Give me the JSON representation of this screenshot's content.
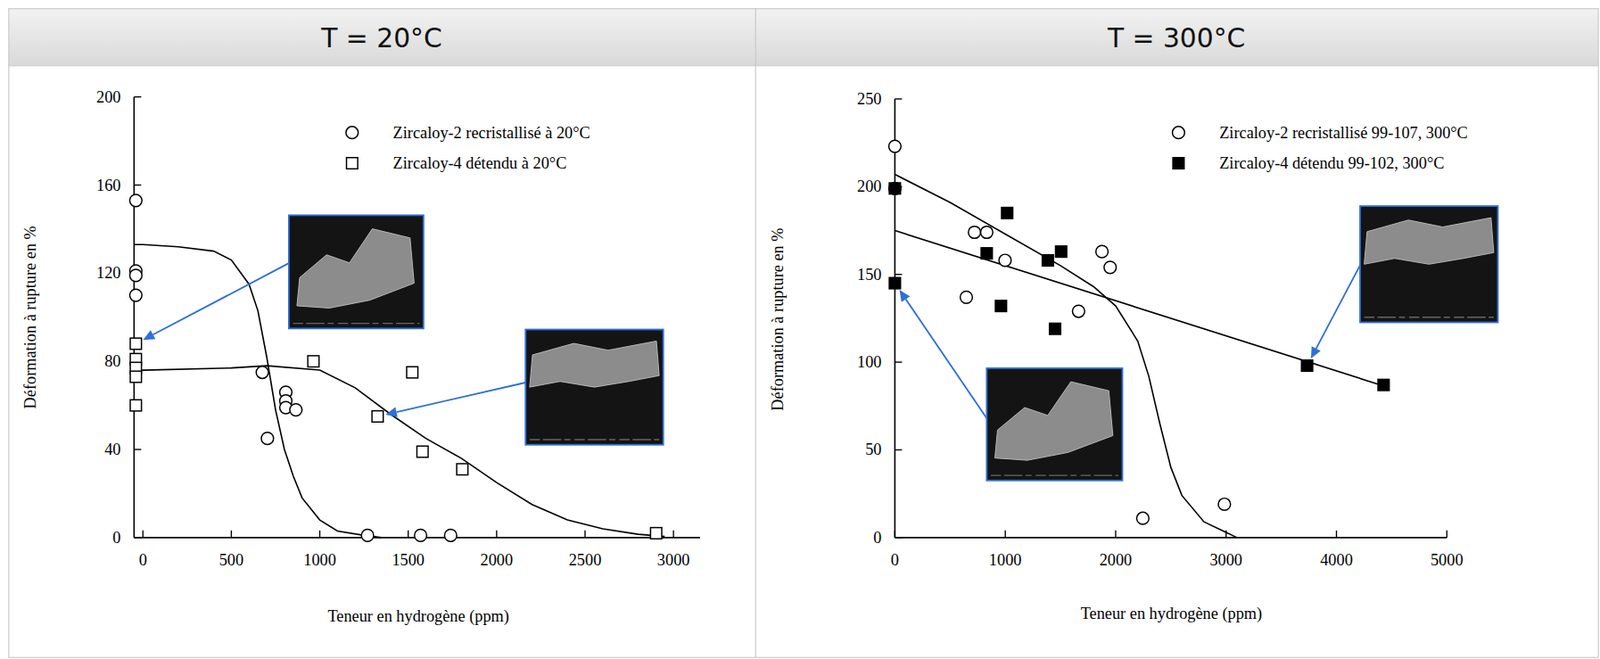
{
  "chart_data": [
    {
      "type": "scatter",
      "title": "T = 20°C",
      "x_label": "Teneur en hydrogène (ppm)",
      "y_label": "Déformation à rupture en %",
      "xlim": [
        -50,
        3150
      ],
      "ylim": [
        0,
        200
      ],
      "xticks": [
        0,
        500,
        1000,
        1500,
        2000,
        2500,
        3000
      ],
      "yticks": [
        0,
        40,
        80,
        120,
        160,
        200
      ],
      "grid": false,
      "legend": "top-right",
      "series": [
        {
          "name": "Zircaloy-2 recristallisé à 20°C",
          "type": "scatter",
          "marker": "circle-open",
          "color": "#000000",
          "x": [
            -40,
            -40,
            -40,
            -40,
            675,
            704,
            808,
            808,
            808,
            865,
            1270,
            1570,
            1740
          ],
          "values": [
            153,
            121,
            119,
            110,
            75,
            45,
            66,
            62,
            59,
            58,
            1,
            1,
            1
          ]
        },
        {
          "name": "Zircaloy-4 détendu à 20°C",
          "type": "scatter",
          "marker": "square-open",
          "color": "#000000",
          "x": [
            -40,
            -40,
            -40,
            -40,
            -40,
            964,
            1523,
            1327,
            1581,
            1806,
            2902
          ],
          "values": [
            88,
            81,
            77,
            73,
            60,
            80,
            75,
            55,
            39,
            31,
            2
          ]
        },
        {
          "type": "line",
          "line_style": "solid",
          "color": "#000000",
          "x": [
            -50,
            0,
            200,
            400,
            500,
            600,
            650,
            700,
            750,
            800,
            850,
            900,
            1000,
            1100,
            1250,
            1350
          ],
          "values": [
            133,
            133,
            132,
            130,
            126,
            115,
            103,
            82,
            58,
            40,
            28,
            18,
            8,
            3,
            1,
            0
          ]
        },
        {
          "type": "line",
          "line_style": "solid",
          "color": "#000000",
          "x": [
            -50,
            0,
            500,
            700,
            1000,
            1200,
            1400,
            1600,
            1800,
            2000,
            2200,
            2400,
            2600,
            2800,
            2950
          ],
          "values": [
            75,
            76,
            77,
            78,
            76,
            68,
            56,
            45,
            36,
            25,
            15,
            8,
            4,
            1.5,
            0.5
          ]
        }
      ]
    },
    {
      "type": "scatter",
      "title": "T = 300°C",
      "x_label": "Teneur en hydrogène (ppm)",
      "y_label": "Déformation à rupture en %",
      "xlim": [
        0,
        5000
      ],
      "ylim": [
        0,
        250
      ],
      "xticks": [
        0,
        1000,
        2000,
        3000,
        4000,
        5000
      ],
      "yticks": [
        0,
        50,
        100,
        150,
        200,
        250
      ],
      "grid": false,
      "legend": "top-right",
      "series": [
        {
          "name": "Zircaloy-2 recristallisé 99-107, 300°C",
          "type": "scatter",
          "marker": "circle-open",
          "color": "#000000",
          "x": [
            0,
            0,
            647,
            721,
            832,
            998,
            1664,
            1876,
            1950,
            2246,
            2985
          ],
          "values": [
            223,
            199,
            137,
            174,
            174,
            158,
            129,
            163,
            154,
            11,
            19
          ]
        },
        {
          "name": "Zircaloy-4 détendu 99-102, 300°C",
          "type": "scatter",
          "marker": "square-filled",
          "color": "#000000",
          "x": [
            0,
            0,
            832,
            961,
            1017,
            1386,
            1506,
            1451,
            3734,
            4427
          ],
          "values": [
            199,
            145,
            162,
            132,
            185,
            158,
            163,
            119,
            98,
            87
          ]
        },
        {
          "type": "line",
          "line_style": "solid",
          "color": "#000000",
          "x": [
            0,
            500,
            1000,
            1500,
            1800,
            2000,
            2200,
            2300,
            2400,
            2500,
            2600,
            2800,
            3000,
            3100
          ],
          "values": [
            207,
            191,
            173,
            155,
            143,
            132,
            112,
            92,
            65,
            40,
            24,
            9,
            3,
            0
          ]
        },
        {
          "type": "line",
          "line_style": "solid",
          "color": "#000000",
          "x": [
            0,
            4450
          ],
          "values": [
            175,
            86
          ]
        }
      ]
    }
  ]
}
